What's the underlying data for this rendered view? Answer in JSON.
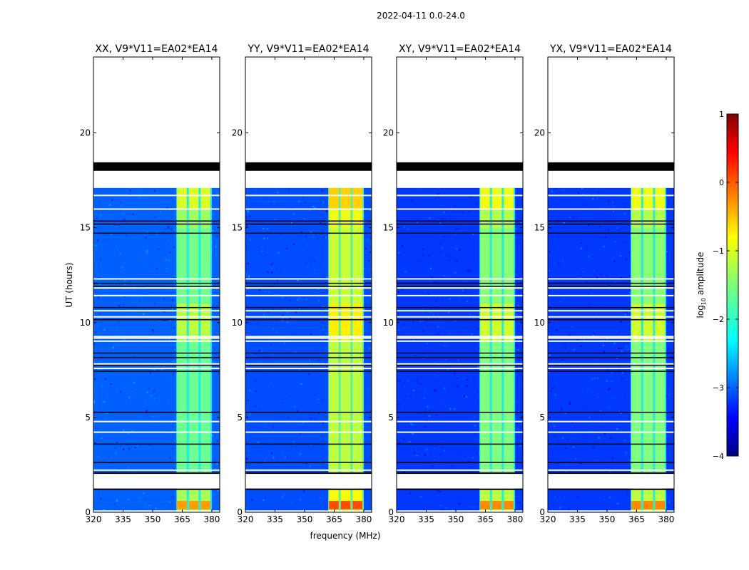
{
  "chart_data": {
    "type": "heatmap",
    "suptitle": "2022-04-11 0.0-24.0",
    "xlabel": "frequency (MHz)",
    "ylabel": "UT (hours)",
    "xlim": [
      320,
      384
    ],
    "ylim": [
      0,
      24
    ],
    "xticks": [
      320,
      335,
      350,
      365,
      380
    ],
    "yticks": [
      0,
      5,
      10,
      15,
      20
    ],
    "data_coverage_hours": [
      0.0,
      17.1
    ],
    "flagged_rows_hours": [
      {
        "start": 18.0,
        "end": 18.45,
        "label": "black band"
      },
      {
        "start": 2.05,
        "end": 2.1,
        "label": "black line"
      },
      {
        "start": 1.2,
        "end": 1.25,
        "label": "black line"
      }
    ],
    "gap_rows_hours": [
      {
        "start": 17.1,
        "end": 18.0
      },
      {
        "start": 18.45,
        "end": 24.0
      },
      {
        "start": 1.25,
        "end": 2.05
      }
    ],
    "rfi_frequency_band_mhz": [
      362,
      380
    ],
    "rfi_channels_mhz": [
      362,
      368,
      374,
      380
    ],
    "colorbar": {
      "label": "log10 amplitude",
      "min": -4,
      "max": 1,
      "ticks": [
        "1",
        "0",
        "−1",
        "−2",
        "−3",
        "−4"
      ],
      "colormap": "jet"
    },
    "panels": [
      {
        "pol": "XX",
        "title": "XX, V9*V11=EA02*EA14",
        "background_level": -2.9,
        "rfi_level": -1.6
      },
      {
        "pol": "YY",
        "title": "YY, V9*V11=EA02*EA14",
        "background_level": -3.0,
        "rfi_level": -1.2
      },
      {
        "pol": "XY",
        "title": "XY, V9*V11=EA02*EA14",
        "background_level": -3.1,
        "rfi_level": -1.5
      },
      {
        "pol": "YX",
        "title": "YX, V9*V11=EA02*EA14",
        "background_level": -3.1,
        "rfi_level": -1.5
      }
    ]
  }
}
